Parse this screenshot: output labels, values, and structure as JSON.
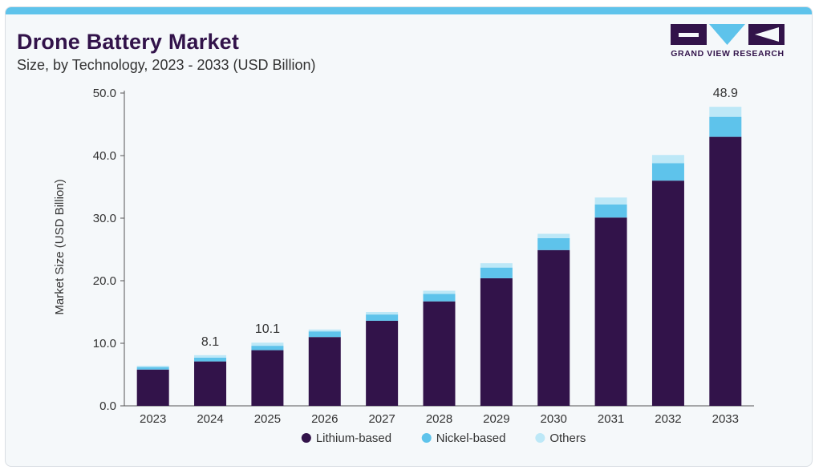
{
  "header": {
    "title": "Drone Battery Market",
    "subtitle": "Size, by Technology, 2023 - 2033 (USD Billion)"
  },
  "brand": {
    "logo_text": "GRAND VIEW RESEARCH",
    "colors": {
      "primary": "#32134a",
      "accent": "#5ec3eb",
      "top_bar": "#5ec3eb"
    }
  },
  "chart_data": {
    "type": "bar",
    "stacked": true,
    "categories": [
      "2023",
      "2024",
      "2025",
      "2026",
      "2027",
      "2028",
      "2029",
      "2030",
      "2031",
      "2032",
      "2033"
    ],
    "series": [
      {
        "name": "Lithium-based",
        "color": "#32134a",
        "values": [
          5.8,
          7.1,
          8.9,
          11.0,
          13.6,
          16.7,
          20.4,
          24.9,
          30.1,
          36.0,
          43.0
        ]
      },
      {
        "name": "Nickel-based",
        "color": "#5ec3eb",
        "values": [
          0.4,
          0.6,
          0.7,
          0.9,
          1.0,
          1.2,
          1.7,
          1.9,
          2.1,
          2.8,
          3.2
        ]
      },
      {
        "name": "Others",
        "color": "#bde8f7",
        "values": [
          0.2,
          0.4,
          0.5,
          0.3,
          0.4,
          0.5,
          0.7,
          0.7,
          1.1,
          1.3,
          1.6
        ]
      }
    ],
    "totals_labels": [
      {
        "category": "2024",
        "label": "8.1"
      },
      {
        "category": "2025",
        "label": "10.1"
      },
      {
        "category": "2033",
        "label": "48.9"
      }
    ],
    "ylabel": "Market Size (USD Billion)",
    "xlabel": "",
    "ylim": [
      0,
      50
    ],
    "yticks": [
      "0.0",
      "10.0",
      "20.0",
      "30.0",
      "40.0",
      "50.0"
    ],
    "ytick_values": [
      0,
      10,
      20,
      30,
      40,
      50
    ],
    "grid": false,
    "legend_position": "bottom-center"
  }
}
